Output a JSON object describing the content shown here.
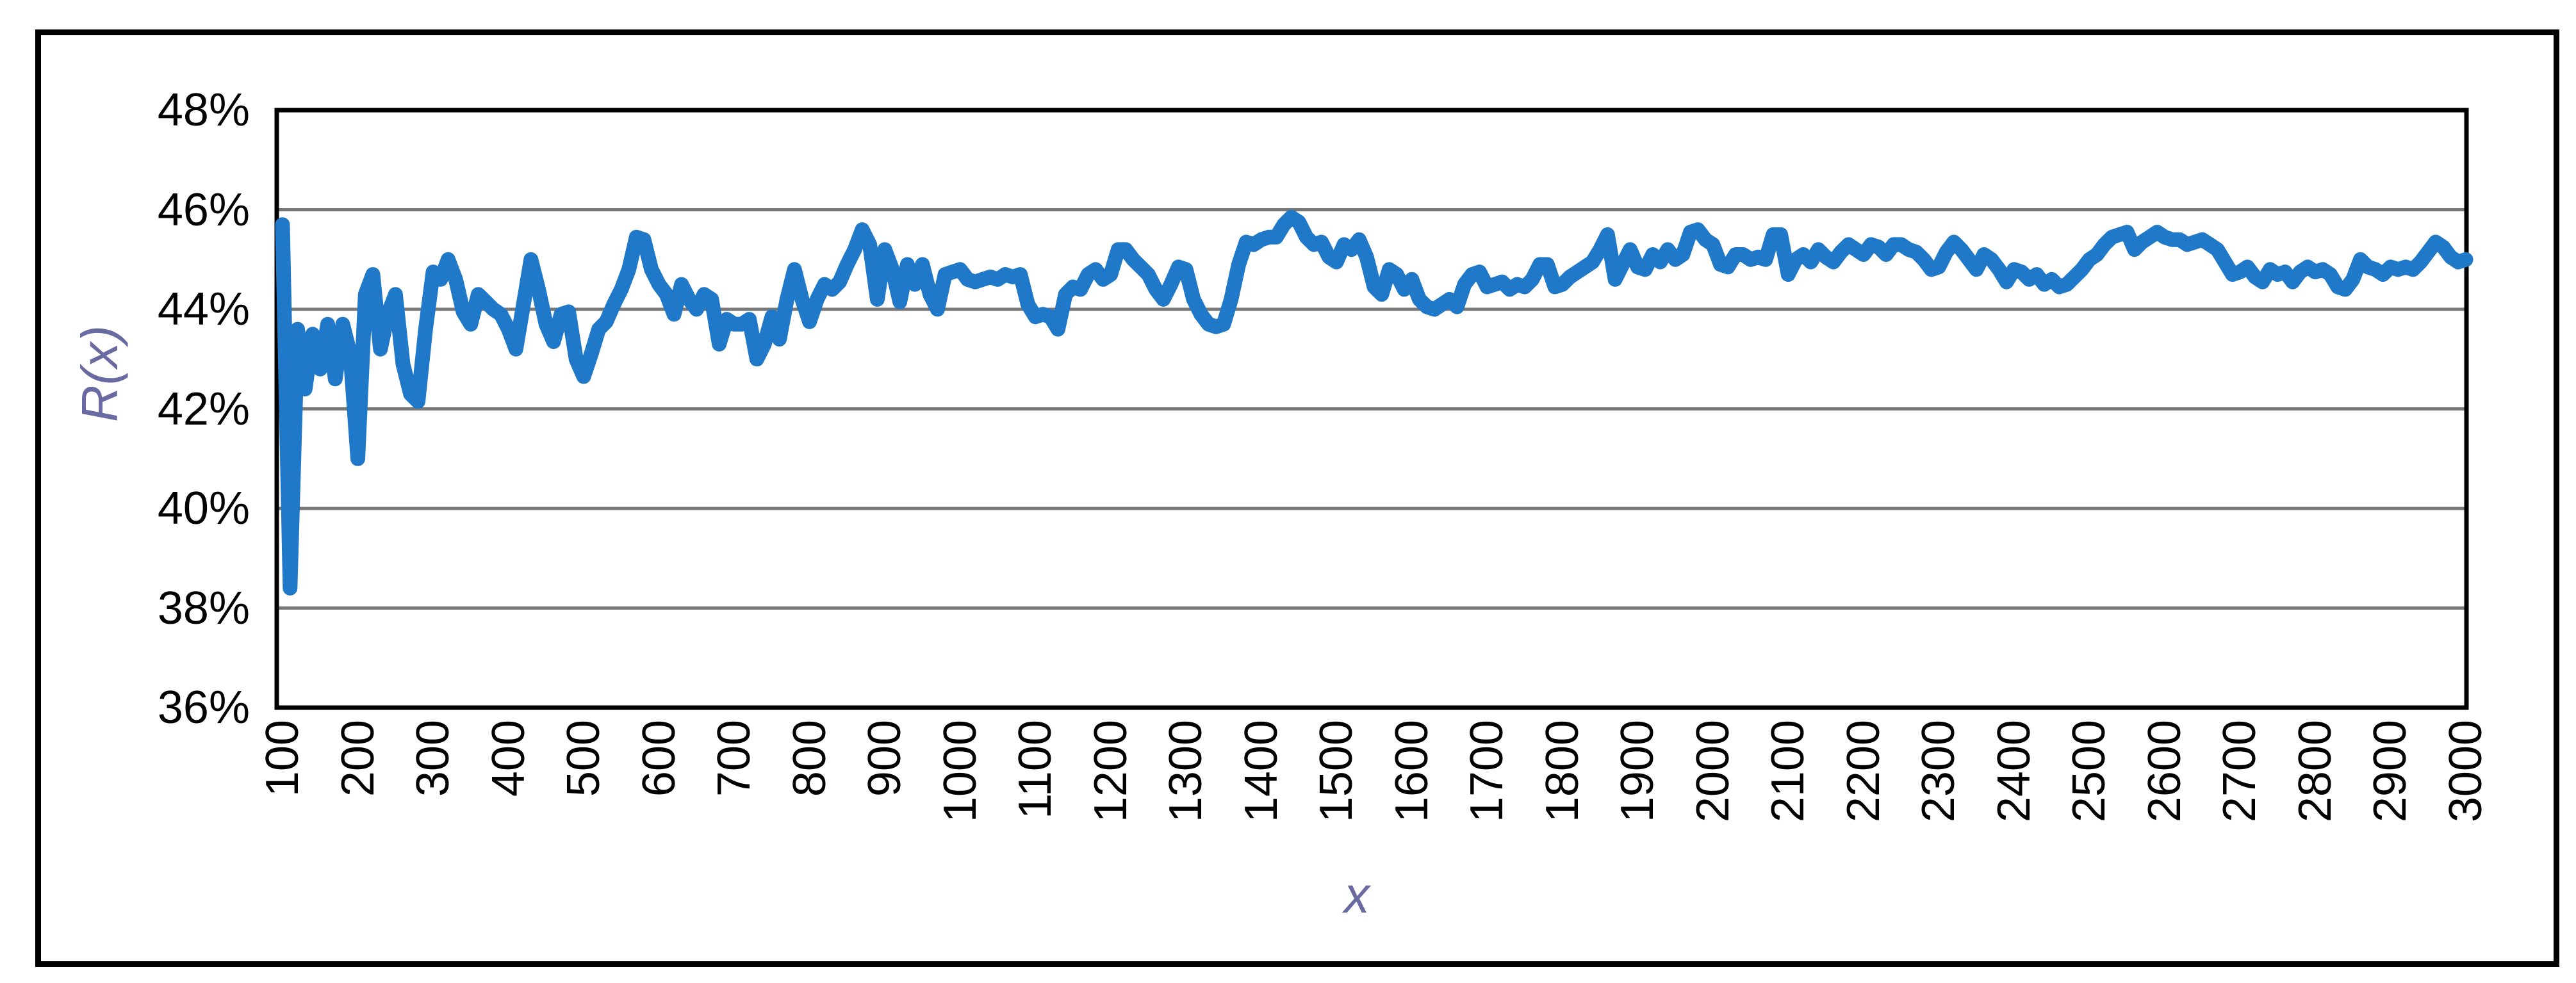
{
  "colors": {
    "line": "#1F78C8",
    "gridline": "#787878",
    "plot_border": "#000000",
    "outer_frame": "#000000",
    "axis_title": "#6A6AA3",
    "tick_label": "#000000",
    "background": "#ffffff"
  },
  "chart_data": {
    "type": "line",
    "title": "",
    "xlabel": "x",
    "ylabel": "R(x)",
    "xlim": [
      100,
      3000
    ],
    "ylim": [
      36,
      48
    ],
    "legend_position": "none",
    "grid": "horizontal",
    "gridlines_at": [
      46,
      44,
      42,
      40,
      38
    ],
    "y_tick_values": [
      48,
      46,
      44,
      42,
      40,
      38,
      36
    ],
    "y_tick_labels": [
      "48%",
      "46%",
      "44%",
      "42%",
      "40%",
      "38%",
      "36%"
    ],
    "x_tick_values": [
      100,
      200,
      300,
      400,
      500,
      600,
      700,
      800,
      900,
      1000,
      1100,
      1200,
      1300,
      1400,
      1500,
      1600,
      1700,
      1800,
      1900,
      2000,
      2100,
      2200,
      2300,
      2400,
      2500,
      2600,
      2700,
      2800,
      2900,
      3000
    ],
    "series": [
      {
        "name": "R(x)",
        "x_start": 100,
        "x_step": 10,
        "values": [
          45.7,
          38.4,
          43.6,
          42.4,
          43.5,
          42.8,
          43.7,
          42.6,
          43.7,
          43.1,
          41.0,
          44.3,
          44.7,
          43.2,
          43.9,
          44.3,
          42.9,
          42.3,
          42.15,
          43.6,
          44.75,
          44.6,
          45.0,
          44.6,
          43.95,
          43.7,
          44.3,
          44.15,
          44.0,
          43.9,
          43.6,
          43.2,
          44.1,
          45.0,
          44.4,
          43.7,
          43.35,
          43.9,
          43.95,
          43.0,
          42.65,
          43.1,
          43.6,
          43.75,
          44.1,
          44.4,
          44.8,
          45.45,
          45.4,
          44.8,
          44.5,
          44.3,
          43.9,
          44.5,
          44.2,
          44.0,
          44.3,
          44.2,
          43.3,
          43.8,
          43.7,
          43.7,
          43.8,
          43.0,
          43.3,
          43.85,
          43.4,
          44.2,
          44.8,
          44.2,
          43.75,
          44.2,
          44.5,
          44.4,
          44.55,
          44.9,
          45.2,
          45.6,
          45.3,
          44.2,
          45.2,
          44.8,
          44.15,
          44.9,
          44.5,
          44.9,
          44.3,
          44.0,
          44.7,
          44.75,
          44.8,
          44.6,
          44.55,
          44.6,
          44.65,
          44.6,
          44.7,
          44.65,
          44.7,
          44.1,
          43.85,
          43.9,
          43.85,
          43.6,
          44.3,
          44.45,
          44.4,
          44.7,
          44.8,
          44.6,
          44.7,
          45.2,
          45.2,
          45.0,
          44.85,
          44.7,
          44.4,
          44.2,
          44.5,
          44.85,
          44.8,
          44.2,
          43.9,
          43.7,
          43.65,
          43.7,
          44.2,
          44.9,
          45.35,
          45.3,
          45.4,
          45.45,
          45.45,
          45.7,
          45.85,
          45.75,
          45.45,
          45.3,
          45.35,
          45.05,
          44.95,
          45.3,
          45.2,
          45.4,
          45.05,
          44.45,
          44.3,
          44.8,
          44.7,
          44.4,
          44.6,
          44.2,
          44.05,
          44.0,
          44.1,
          44.2,
          44.05,
          44.5,
          44.7,
          44.75,
          44.45,
          44.5,
          44.55,
          44.4,
          44.5,
          44.45,
          44.6,
          44.9,
          44.9,
          44.45,
          44.5,
          44.65,
          44.75,
          44.85,
          44.95,
          45.2,
          45.5,
          44.6,
          44.9,
          45.2,
          44.85,
          44.8,
          45.1,
          44.95,
          45.2,
          45.0,
          45.1,
          45.55,
          45.6,
          45.4,
          45.3,
          44.9,
          44.85,
          45.1,
          45.1,
          45.0,
          45.05,
          45.0,
          45.5,
          45.5,
          44.7,
          45.0,
          45.1,
          44.95,
          45.2,
          45.05,
          44.95,
          45.15,
          45.3,
          45.2,
          45.1,
          45.3,
          45.25,
          45.1,
          45.3,
          45.3,
          45.2,
          45.15,
          45.0,
          44.8,
          44.85,
          45.15,
          45.35,
          45.2,
          45.0,
          44.8,
          45.1,
          45.0,
          44.8,
          44.55,
          44.8,
          44.75,
          44.6,
          44.7,
          44.5,
          44.6,
          44.45,
          44.5,
          44.65,
          44.8,
          45.0,
          45.1,
          45.3,
          45.45,
          45.5,
          45.55,
          45.2,
          45.35,
          45.45,
          45.55,
          45.45,
          45.4,
          45.4,
          45.3,
          45.35,
          45.4,
          45.3,
          45.2,
          44.95,
          44.7,
          44.75,
          44.85,
          44.65,
          44.55,
          44.8,
          44.7,
          44.75,
          44.55,
          44.75,
          44.85,
          44.75,
          44.8,
          44.7,
          44.45,
          44.4,
          44.6,
          45.0,
          44.85,
          44.8,
          44.7,
          44.85,
          44.8,
          44.85,
          44.8,
          44.95,
          45.15,
          45.35,
          45.25,
          45.05,
          44.95,
          45.0
        ]
      }
    ]
  }
}
